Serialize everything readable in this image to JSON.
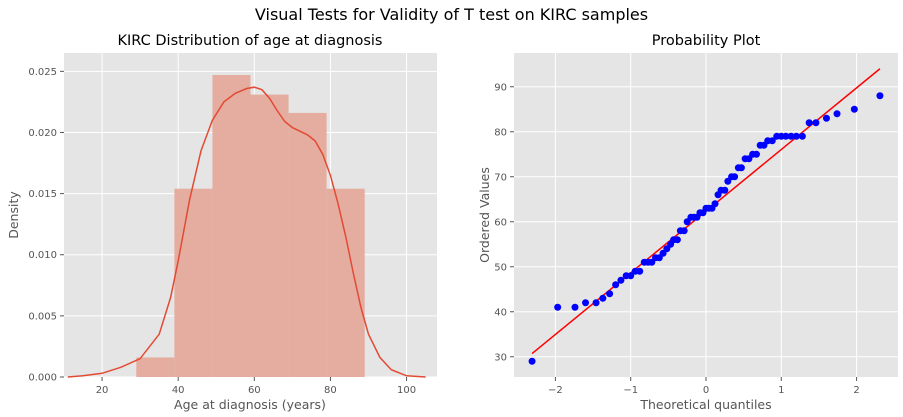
{
  "figure": {
    "title": "Visual Tests for Validity of T test on KIRC samples"
  },
  "chart_data": [
    {
      "type": "histogram",
      "title": "KIRC Distribution of age at diagnosis",
      "xlabel": "Age at diagnosis (years)",
      "ylabel": "Density",
      "xlim": [
        10,
        108
      ],
      "ylim": [
        0,
        0.0265
      ],
      "xticks": [
        20,
        40,
        60,
        80,
        100
      ],
      "yticks": [
        0.0,
        0.005,
        0.01,
        0.015,
        0.02,
        0.025
      ],
      "ytick_labels": [
        "0.000",
        "0.005",
        "0.010",
        "0.015",
        "0.020",
        "0.025"
      ],
      "grid": true,
      "bins": [
        {
          "start": 29,
          "end": 39,
          "density": 0.0016
        },
        {
          "start": 39,
          "end": 49,
          "density": 0.0154
        },
        {
          "start": 49,
          "end": 59,
          "density": 0.0247
        },
        {
          "start": 59,
          "end": 69,
          "density": 0.0231
        },
        {
          "start": 69,
          "end": 79,
          "density": 0.0216
        },
        {
          "start": 79,
          "end": 89,
          "density": 0.0154
        }
      ],
      "kde": {
        "x": [
          11,
          15,
          20,
          25,
          30,
          35,
          38,
          40,
          43,
          46,
          49,
          52,
          55,
          58,
          60,
          62,
          64,
          66,
          68,
          70,
          72,
          74,
          76,
          78,
          80,
          82,
          84,
          86,
          88,
          90,
          93,
          96,
          100,
          105
        ],
        "y": [
          0.0,
          0.0001,
          0.0003,
          0.0008,
          0.0015,
          0.0035,
          0.0065,
          0.0095,
          0.0145,
          0.0185,
          0.021,
          0.0225,
          0.0232,
          0.0236,
          0.0237,
          0.0235,
          0.0228,
          0.0218,
          0.0209,
          0.0204,
          0.0201,
          0.0198,
          0.0193,
          0.0182,
          0.0165,
          0.0142,
          0.0115,
          0.0085,
          0.0057,
          0.0035,
          0.0016,
          0.0006,
          0.0001,
          0.0
        ]
      },
      "colors": {
        "bar": "#e5ada0",
        "line": "#e24a33",
        "background": "#e5e5e5",
        "grid": "#ffffff"
      }
    },
    {
      "type": "scatter",
      "title": "Probability Plot",
      "xlabel": "Theoretical quantiles",
      "ylabel": "Ordered Values",
      "xlim": [
        -2.55,
        2.55
      ],
      "ylim": [
        25.5,
        97.5
      ],
      "xticks": [
        -2,
        -1,
        0,
        1,
        2
      ],
      "yticks": [
        30,
        40,
        50,
        60,
        70,
        80,
        90
      ],
      "grid": true,
      "points": {
        "x": [
          -2.31,
          -1.97,
          -1.74,
          -1.6,
          -1.46,
          -1.37,
          -1.28,
          -1.2,
          -1.13,
          -1.06,
          -1.0,
          -0.94,
          -0.88,
          -0.82,
          -0.77,
          -0.72,
          -0.67,
          -0.62,
          -0.57,
          -0.52,
          -0.47,
          -0.43,
          -0.38,
          -0.34,
          -0.29,
          -0.25,
          -0.2,
          -0.16,
          -0.12,
          -0.08,
          -0.04,
          0.0,
          0.04,
          0.08,
          0.12,
          0.16,
          0.2,
          0.25,
          0.29,
          0.34,
          0.38,
          0.43,
          0.47,
          0.52,
          0.57,
          0.62,
          0.67,
          0.72,
          0.77,
          0.82,
          0.88,
          0.94,
          1.0,
          1.06,
          1.13,
          1.2,
          1.28,
          1.37,
          1.46,
          1.6,
          1.74,
          1.97,
          2.31
        ],
        "y": [
          29,
          41,
          41,
          42,
          42,
          43,
          44,
          46,
          47,
          48,
          48,
          49,
          49,
          51,
          51,
          51,
          52,
          52,
          53,
          54,
          55,
          56,
          56,
          58,
          58,
          60,
          61,
          61,
          61,
          62,
          62,
          63,
          63,
          63,
          64,
          66,
          67,
          67,
          69,
          70,
          70,
          72,
          72,
          74,
          74,
          75,
          75,
          77,
          77,
          78,
          78,
          79,
          79,
          79,
          79,
          79,
          79,
          82,
          82,
          83,
          84,
          85,
          88
        ]
      },
      "fit_line": {
        "x": [
          -2.31,
          2.31
        ],
        "y": [
          30.7,
          94.0
        ]
      },
      "colors": {
        "points": "#0000ff",
        "line": "#ff0000",
        "background": "#e5e5e5",
        "grid": "#ffffff"
      }
    }
  ]
}
